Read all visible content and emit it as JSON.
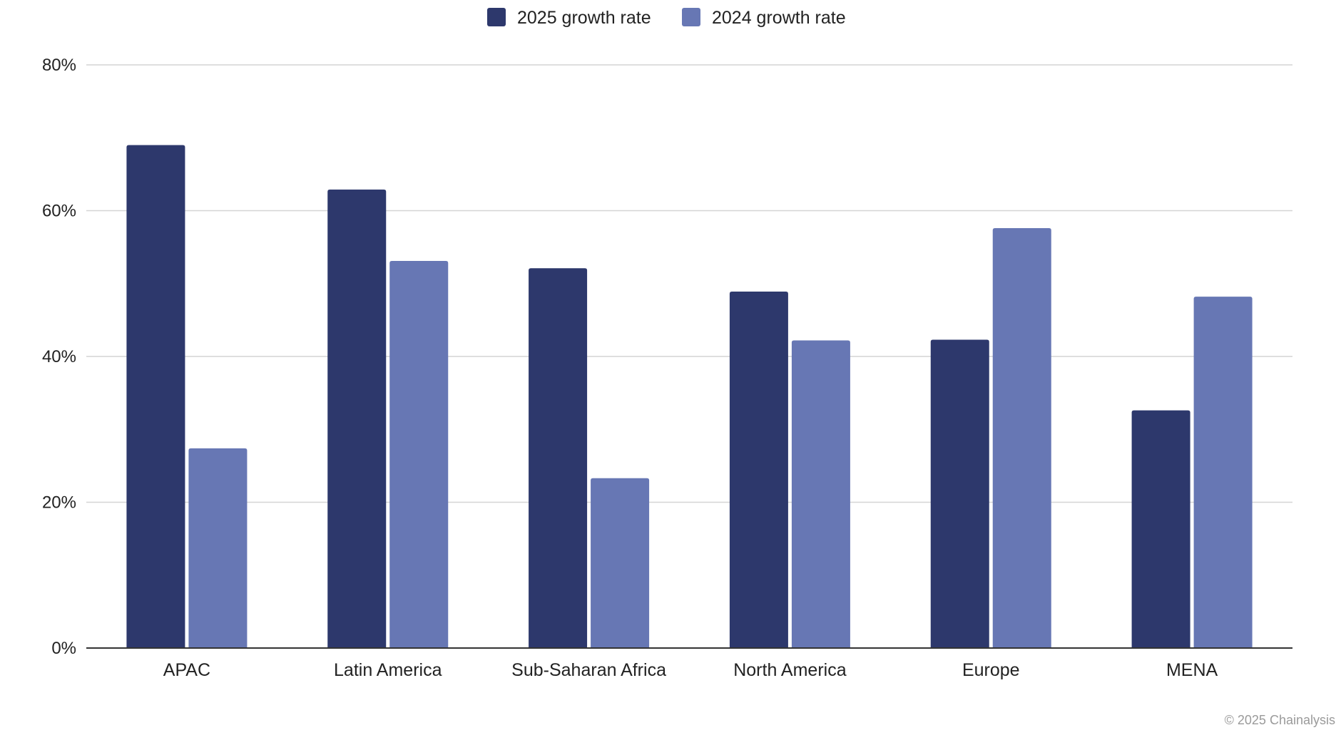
{
  "chart_data": {
    "type": "bar",
    "title": "",
    "xlabel": "",
    "ylabel": "",
    "categories": [
      "APAC",
      "Latin America",
      "Sub-Saharan Africa",
      "North America",
      "Europe",
      "MENA"
    ],
    "series": [
      {
        "name": "2025 growth rate",
        "values": [
          69,
          62.9,
          52.1,
          48.9,
          42.3,
          32.6
        ],
        "color": "#2d386c"
      },
      {
        "name": "2024 growth rate",
        "values": [
          27.4,
          53.1,
          23.3,
          42.2,
          57.6,
          48.2
        ],
        "color": "#6777b4"
      }
    ],
    "ylim": [
      0,
      80
    ],
    "yticks": [
      0,
      20,
      40,
      60,
      80
    ],
    "ytick_labels": [
      "0%",
      "20%",
      "40%",
      "60%",
      "80%"
    ],
    "grid": true,
    "legend_position": "top-center"
  },
  "footer": {
    "credit": "© 2025 Chainalysis"
  },
  "colors": {
    "grid": "#d4d4d4",
    "axis": "#333333"
  }
}
